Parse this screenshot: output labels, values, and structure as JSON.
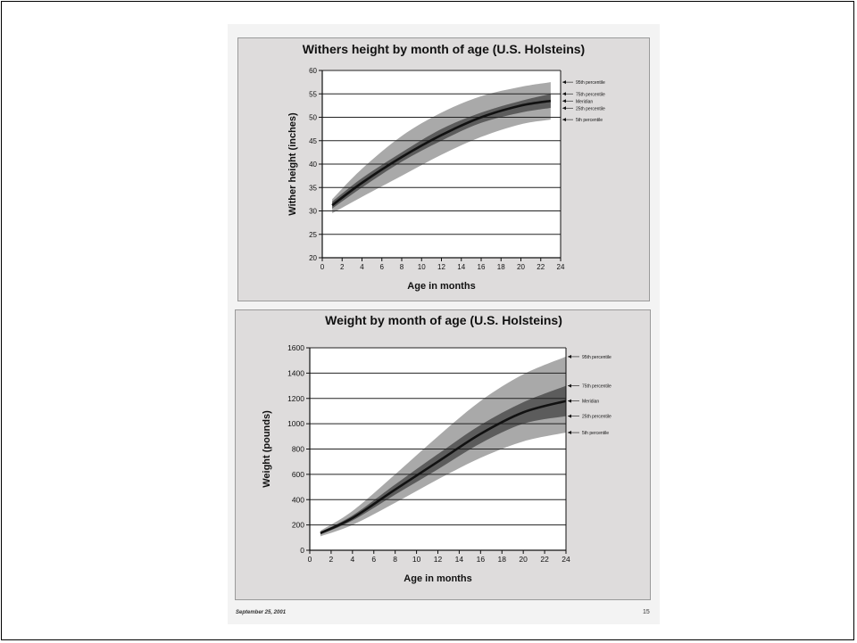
{
  "footer": {
    "date": "September 25, 2001",
    "page": "15"
  },
  "chart_data": [
    {
      "type": "area",
      "title": "Withers height by month of age (U.S. Holsteins)",
      "xlabel": "Age in months",
      "ylabel": "Wither height (inches)",
      "xlim": [
        0,
        24
      ],
      "ylim": [
        20,
        60
      ],
      "xticks": [
        0,
        2,
        4,
        6,
        8,
        10,
        12,
        14,
        16,
        18,
        20,
        22,
        24
      ],
      "yticks": [
        20,
        25,
        30,
        35,
        40,
        45,
        50,
        55,
        60
      ],
      "grid": "horizontal",
      "x": [
        1,
        4,
        8,
        12,
        16,
        20,
        23
      ],
      "series": [
        {
          "name": "95th percentile",
          "values": [
            32.5,
            39,
            46,
            51,
            54.5,
            56.5,
            57.5
          ]
        },
        {
          "name": "75th percentile",
          "values": [
            32,
            37,
            42.5,
            47.5,
            51,
            53.5,
            55
          ]
        },
        {
          "name": "Meridian",
          "values": [
            31.2,
            36,
            41.5,
            46.2,
            50,
            52.5,
            53.5
          ]
        },
        {
          "name": "25th percentile",
          "values": [
            30.5,
            35,
            40.5,
            45,
            48.8,
            51,
            52
          ]
        },
        {
          "name": "5th percentile",
          "values": [
            29.5,
            33,
            37.5,
            42,
            45.8,
            48.5,
            49.5
          ]
        }
      ],
      "colors": {
        "outer_band": "#a9a9a9",
        "inner_band": "#5c5c5c",
        "line": "#111111"
      }
    },
    {
      "type": "area",
      "title": "Weight by month of age (U.S. Holsteins)",
      "xlabel": "Age in months",
      "ylabel": "Weight (pounds)",
      "xlim": [
        0,
        24
      ],
      "ylim": [
        0,
        1600
      ],
      "xticks": [
        0,
        2,
        4,
        6,
        8,
        10,
        12,
        14,
        16,
        18,
        20,
        22,
        24
      ],
      "yticks": [
        0,
        200,
        400,
        600,
        800,
        1000,
        1200,
        1400,
        1600
      ],
      "grid": "horizontal",
      "x": [
        1,
        4,
        8,
        12,
        16,
        20,
        24
      ],
      "series": [
        {
          "name": "95th percentile",
          "values": [
            155,
            310,
            600,
            900,
            1180,
            1390,
            1530
          ]
        },
        {
          "name": "75th percentile",
          "values": [
            145,
            275,
            520,
            760,
            990,
            1170,
            1300
          ]
        },
        {
          "name": "Meridian",
          "values": [
            135,
            255,
            480,
            700,
            920,
            1090,
            1180
          ]
        },
        {
          "name": "25th percentile",
          "values": [
            125,
            235,
            440,
            640,
            845,
            1000,
            1060
          ]
        },
        {
          "name": "5th percentile",
          "values": [
            110,
            200,
            375,
            560,
            730,
            860,
            930
          ]
        }
      ],
      "colors": {
        "outer_band": "#a9a9a9",
        "inner_band": "#5c5c5c",
        "line": "#111111"
      }
    }
  ]
}
